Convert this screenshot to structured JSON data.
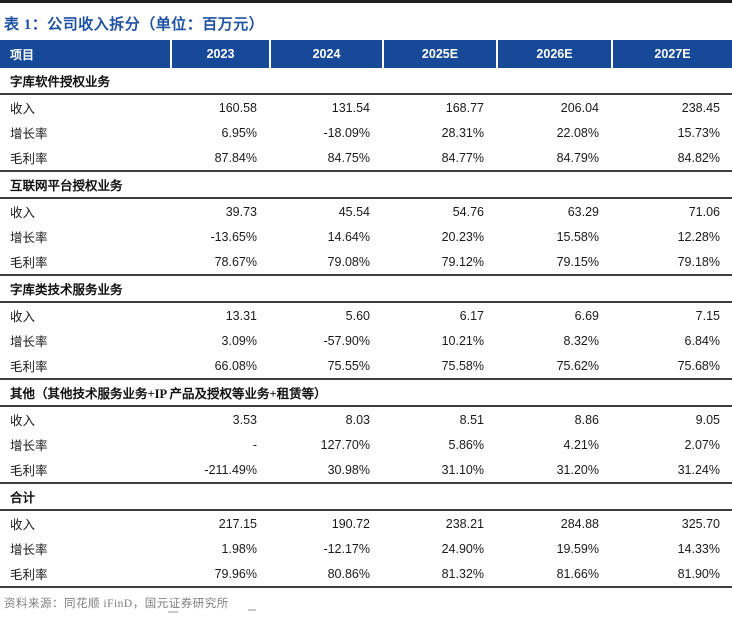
{
  "title": "表 1：公司收入拆分（单位：百万元）",
  "source": "资料来源：同花顺 iFinD，国元证券研究所",
  "colors": {
    "header_bg": "#164A99",
    "title_blue": "#1F51A3",
    "rule": "#3e3e3e",
    "source_gray": "#808080"
  },
  "chart_data": {
    "type": "table",
    "title": "表 1：公司收入拆分（单位：百万元）",
    "columns": [
      "项目",
      "2023",
      "2024",
      "2025E",
      "2026E",
      "2027E"
    ],
    "sections": [
      {
        "name": "字库软件授权业务",
        "rows": [
          {
            "label": "收入",
            "values": [
              "160.58",
              "131.54",
              "168.77",
              "206.04",
              "238.45"
            ]
          },
          {
            "label": "增长率",
            "values": [
              "6.95%",
              "-18.09%",
              "28.31%",
              "22.08%",
              "15.73%"
            ]
          },
          {
            "label": "毛利率",
            "values": [
              "87.84%",
              "84.75%",
              "84.77%",
              "84.79%",
              "84.82%"
            ]
          }
        ]
      },
      {
        "name": "互联网平台授权业务",
        "rows": [
          {
            "label": "收入",
            "values": [
              "39.73",
              "45.54",
              "54.76",
              "63.29",
              "71.06"
            ]
          },
          {
            "label": "增长率",
            "values": [
              "-13.65%",
              "14.64%",
              "20.23%",
              "15.58%",
              "12.28%"
            ]
          },
          {
            "label": "毛利率",
            "values": [
              "78.67%",
              "79.08%",
              "79.12%",
              "79.15%",
              "79.18%"
            ]
          }
        ]
      },
      {
        "name": "字库类技术服务业务",
        "rows": [
          {
            "label": "收入",
            "values": [
              "13.31",
              "5.60",
              "6.17",
              "6.69",
              "7.15"
            ]
          },
          {
            "label": "增长率",
            "values": [
              "3.09%",
              "-57.90%",
              "10.21%",
              "8.32%",
              "6.84%"
            ]
          },
          {
            "label": "毛利率",
            "values": [
              "66.08%",
              "75.55%",
              "75.58%",
              "75.62%",
              "75.68%"
            ]
          }
        ]
      },
      {
        "name": "其他（其他技术服务业务+IP 产品及授权等业务+租赁等）",
        "rows": [
          {
            "label": "收入",
            "values": [
              "3.53",
              "8.03",
              "8.51",
              "8.86",
              "9.05"
            ]
          },
          {
            "label": "增长率",
            "values": [
              "-",
              "127.70%",
              "5.86%",
              "4.21%",
              "2.07%"
            ]
          },
          {
            "label": "毛利率",
            "values": [
              "-211.49%",
              "30.98%",
              "31.10%",
              "31.20%",
              "31.24%"
            ]
          }
        ]
      },
      {
        "name": "合计",
        "rows": [
          {
            "label": "收入",
            "values": [
              "217.15",
              "190.72",
              "238.21",
              "284.88",
              "325.70"
            ]
          },
          {
            "label": "增长率",
            "values": [
              "1.98%",
              "-12.17%",
              "24.90%",
              "19.59%",
              "14.33%"
            ]
          },
          {
            "label": "毛利率",
            "values": [
              "79.96%",
              "80.86%",
              "81.32%",
              "81.66%",
              "81.90%"
            ]
          }
        ]
      }
    ]
  }
}
